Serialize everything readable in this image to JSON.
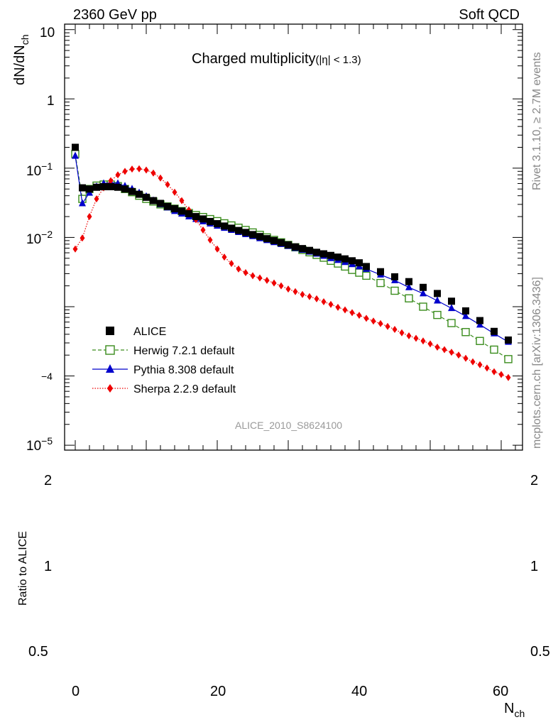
{
  "header": {
    "left": "2360 GeV pp",
    "right": "Soft QCD"
  },
  "side": {
    "rivet": "Rivet 3.1.10, ≥ 2.7M events",
    "mcplots": "mcplots.cern.ch [arXiv:1306.3436]"
  },
  "watermark": "ALICE_2010_S8624100",
  "chart_data": {
    "type": "scatter",
    "title": "Charged multiplicity",
    "title_suffix": "(|η| < 1.3)",
    "ylabel_main": "dN/dN",
    "ylabel_sub": "ch",
    "ylabel_ratio": "Ratio to ALICE",
    "xlabel_main": "N",
    "xlabel_sub": "ch",
    "xlim": [
      -1.5,
      63
    ],
    "ylim": [
      8.5e-06,
      12
    ],
    "ratio_ylim": [
      0.45,
      2.25
    ],
    "yscale": "log",
    "x_ticks": [
      "0",
      "20",
      "40",
      "60"
    ],
    "y_tick_labels": [
      "10",
      "1",
      "10",
      "10",
      "",
      "10"
    ],
    "y_tick_exps": [
      "",
      "",
      "−1",
      "−2",
      "−4",
      "−5"
    ],
    "ratio_tick_labels": [
      "2",
      "1",
      "0.5"
    ],
    "legend_position": "lower-left",
    "series": [
      {
        "name": "ALICE",
        "color": "#000000",
        "marker": "square",
        "line": "none",
        "x": [
          0,
          1,
          2,
          3,
          4,
          5,
          6,
          7,
          8,
          9,
          10,
          11,
          12,
          13,
          14,
          15,
          16,
          17,
          18,
          19,
          20,
          21,
          22,
          23,
          24,
          25,
          26,
          27,
          28,
          29,
          30,
          31,
          32,
          33,
          34,
          35,
          36,
          37,
          38,
          39,
          40,
          41,
          43,
          45,
          47,
          49,
          51,
          53,
          55,
          57,
          59,
          61
        ],
        "y": [
          0.2,
          0.052,
          0.05,
          0.053,
          0.054,
          0.054,
          0.053,
          0.05,
          0.046,
          0.042,
          0.038,
          0.034,
          0.031,
          0.028,
          0.026,
          0.024,
          0.022,
          0.02,
          0.0185,
          0.017,
          0.0158,
          0.0146,
          0.0136,
          0.0126,
          0.0118,
          0.011,
          0.0103,
          0.0096,
          0.009,
          0.0084,
          0.0078,
          0.0073,
          0.0069,
          0.0065,
          0.0061,
          0.0058,
          0.0055,
          0.0052,
          0.0049,
          0.0046,
          0.0043,
          0.0038,
          0.0032,
          0.0027,
          0.0023,
          0.0019,
          0.00155,
          0.0012,
          0.00087,
          0.00063,
          0.00044,
          0.00033
        ]
      },
      {
        "name": "Herwig 7.2.1 default",
        "color": "#3a8c1c",
        "marker": "open-square",
        "line": "dashed",
        "x": [
          0,
          1,
          2,
          3,
          4,
          5,
          6,
          7,
          8,
          9,
          10,
          11,
          12,
          13,
          14,
          15,
          16,
          17,
          18,
          19,
          20,
          21,
          22,
          23,
          24,
          25,
          26,
          27,
          28,
          29,
          30,
          31,
          32,
          33,
          34,
          35,
          36,
          37,
          38,
          39,
          40,
          41,
          43,
          45,
          47,
          49,
          51,
          53,
          55,
          57,
          59,
          61
        ],
        "y": [
          0.16,
          0.036,
          0.05,
          0.056,
          0.058,
          0.058,
          0.055,
          0.05,
          0.045,
          0.04,
          0.036,
          0.033,
          0.03,
          0.028,
          0.026,
          0.024,
          0.0225,
          0.021,
          0.0197,
          0.0184,
          0.0172,
          0.016,
          0.0149,
          0.0138,
          0.0128,
          0.0118,
          0.0109,
          0.01,
          0.0092,
          0.0085,
          0.0078,
          0.0072,
          0.0066,
          0.0061,
          0.0056,
          0.0051,
          0.0046,
          0.0042,
          0.0038,
          0.0034,
          0.0031,
          0.0028,
          0.0022,
          0.0017,
          0.00132,
          0.001,
          0.00076,
          0.00058,
          0.00043,
          0.00032,
          0.00024,
          0.000175
        ]
      },
      {
        "name": "Pythia 8.308 default",
        "color": "#0000cc",
        "marker": "triangle",
        "line": "solid",
        "x": [
          0,
          1,
          2,
          3,
          4,
          5,
          6,
          7,
          8,
          9,
          10,
          11,
          12,
          13,
          14,
          15,
          16,
          17,
          18,
          19,
          20,
          21,
          22,
          23,
          24,
          25,
          26,
          27,
          28,
          29,
          30,
          31,
          32,
          33,
          34,
          35,
          36,
          37,
          38,
          39,
          40,
          41,
          43,
          45,
          47,
          49,
          51,
          53,
          55,
          57,
          59,
          61
        ],
        "y": [
          0.15,
          0.031,
          0.044,
          0.054,
          0.06,
          0.062,
          0.06,
          0.055,
          0.05,
          0.044,
          0.039,
          0.034,
          0.03,
          0.027,
          0.024,
          0.022,
          0.02,
          0.0184,
          0.017,
          0.0158,
          0.0147,
          0.0137,
          0.0128,
          0.0119,
          0.0111,
          0.0104,
          0.0097,
          0.0091,
          0.0085,
          0.008,
          0.0075,
          0.007,
          0.0066,
          0.0062,
          0.0058,
          0.0054,
          0.005,
          0.0047,
          0.0044,
          0.0041,
          0.0038,
          0.0035,
          0.0029,
          0.0024,
          0.0019,
          0.00155,
          0.00122,
          0.00095,
          0.00073,
          0.00055,
          0.00041,
          0.00031
        ]
      },
      {
        "name": "Sherpa 2.2.9 default",
        "color": "#ee0000",
        "marker": "diamond",
        "line": "dotted",
        "x": [
          0,
          1,
          2,
          3,
          4,
          5,
          6,
          7,
          8,
          9,
          10,
          11,
          12,
          13,
          14,
          15,
          16,
          17,
          18,
          19,
          20,
          21,
          22,
          23,
          24,
          25,
          26,
          27,
          28,
          29,
          30,
          31,
          32,
          33,
          34,
          35,
          36,
          37,
          38,
          39,
          40,
          41,
          42,
          43,
          44,
          45,
          46,
          47,
          48,
          49,
          50,
          51,
          52,
          53,
          54,
          55,
          56,
          57,
          58,
          59,
          60,
          61
        ],
        "y": [
          0.0068,
          0.0098,
          0.02,
          0.036,
          0.052,
          0.066,
          0.08,
          0.09,
          0.097,
          0.098,
          0.094,
          0.085,
          0.072,
          0.058,
          0.045,
          0.034,
          0.025,
          0.018,
          0.0128,
          0.0092,
          0.0068,
          0.0052,
          0.0042,
          0.0035,
          0.0031,
          0.0028,
          0.0026,
          0.0024,
          0.0022,
          0.002,
          0.0018,
          0.00165,
          0.0015,
          0.0014,
          0.0013,
          0.00118,
          0.00108,
          0.00098,
          0.0009,
          0.00082,
          0.00075,
          0.00068,
          0.00062,
          0.00057,
          0.00052,
          0.00047,
          0.00042,
          0.00038,
          0.00035,
          0.00032,
          0.00029,
          0.00026,
          0.00024,
          0.00022,
          0.0002,
          0.00018,
          0.00016,
          0.000145,
          0.00013,
          0.000115,
          0.000105,
          9.5e-05
        ]
      }
    ]
  }
}
